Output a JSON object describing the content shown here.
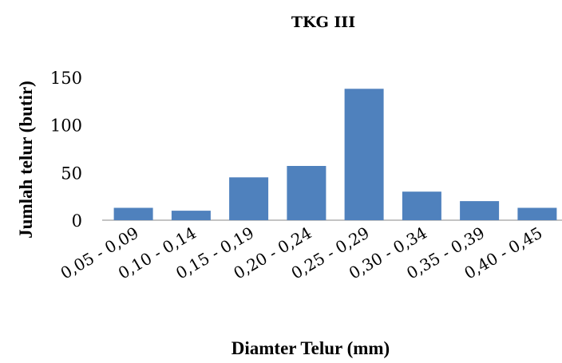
{
  "chart_data": {
    "type": "bar",
    "title": "TKG III",
    "xlabel": "Diamter Telur (mm)",
    "ylabel": "Jumlah telur (butir)",
    "categories": [
      "0,05 - 0,09",
      "0,10 - 0,14",
      "0,15 - 0,19",
      "0,20 - 0,24",
      "0,25 - 0,29",
      "0,30 - 0,34",
      "0,35 - 0,39",
      "0,40 - 0,45"
    ],
    "values": [
      13,
      10,
      45,
      57,
      138,
      30,
      20,
      13
    ],
    "ylim": [
      0,
      150
    ],
    "yticks": [
      0,
      50,
      100,
      150
    ],
    "grid": false,
    "legend": "none",
    "bar_color": "#4f81bd"
  }
}
